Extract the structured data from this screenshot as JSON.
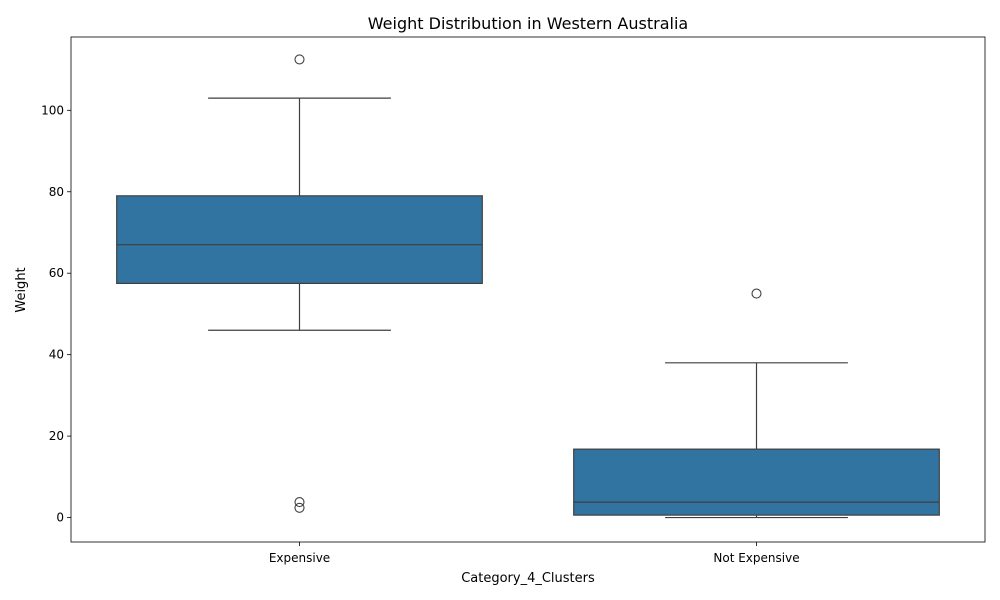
{
  "chart_data": {
    "type": "box",
    "title": "Weight Distribution in Western Australia",
    "xlabel": "Category_4_Clusters",
    "ylabel": "Weight",
    "ylim": [
      -6,
      118
    ],
    "yticks": [
      0,
      20,
      40,
      60,
      80,
      100
    ],
    "grid": false,
    "legend": "none",
    "box_color": "#3274a1",
    "line_color": "#3f3f3f",
    "categories": [
      "Expensive",
      "Not Expensive"
    ],
    "boxes": [
      {
        "category": "Expensive",
        "whisker_low": 46,
        "q1": 57.5,
        "median": 67,
        "q3": 79,
        "whisker_high": 103,
        "outliers": [
          112.5,
          3.8,
          2.4
        ]
      },
      {
        "category": "Not Expensive",
        "whisker_low": 0,
        "q1": 0.6,
        "median": 3.8,
        "q3": 16.8,
        "whisker_high": 38,
        "outliers": [
          55
        ]
      }
    ]
  }
}
